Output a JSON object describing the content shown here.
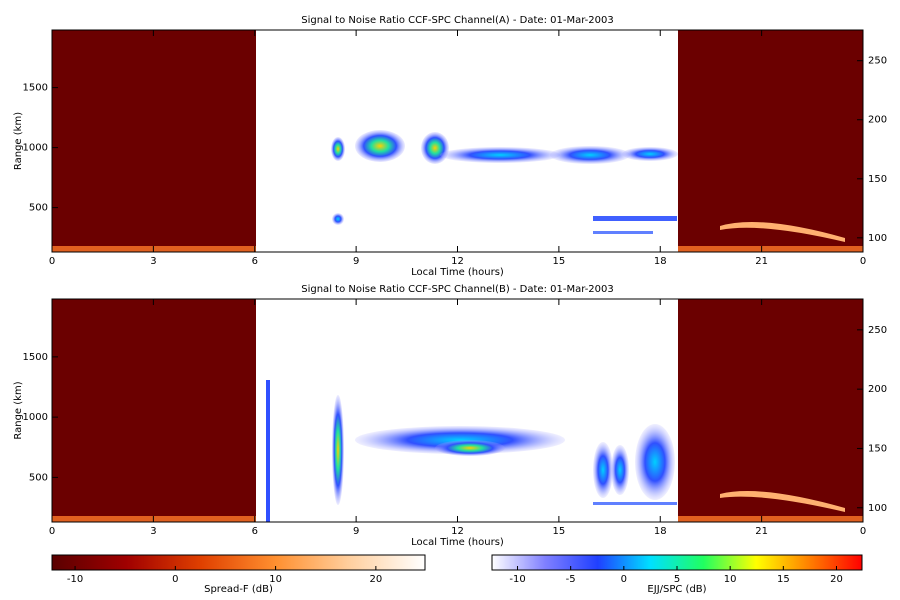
{
  "chart_data": [
    {
      "type": "heatmap",
      "title": "Signal to Noise Ratio CCF-SPC Channel(A) - Date: 01-Mar-2003",
      "xlabel": "Local Time (hours)",
      "ylabel": "Range (km)",
      "xlim": [
        0,
        24
      ],
      "xticks": [
        0,
        3,
        6,
        9,
        12,
        15,
        18,
        21,
        {
          "value": 24,
          "label": "0"
        }
      ],
      "ylim": [
        130,
        1980
      ],
      "yticks": [
        500,
        1000,
        1500
      ],
      "y2lim": [
        88,
        276
      ],
      "y2ticks": [
        100,
        150,
        200,
        250
      ]
    },
    {
      "type": "heatmap",
      "title": "Signal to Noise Ratio CCF-SPC Channel(B) - Date: 01-Mar-2003",
      "xlabel": "Local Time (hours)",
      "ylabel": "Range (km)",
      "xlim": [
        0,
        24
      ],
      "xticks": [
        0,
        3,
        6,
        9,
        12,
        15,
        18,
        21,
        {
          "value": 24,
          "label": "0"
        }
      ],
      "ylim": [
        130,
        1980
      ],
      "yticks": [
        500,
        1000,
        1500
      ],
      "y2lim": [
        88,
        276
      ],
      "y2ticks": [
        100,
        150,
        200,
        250
      ]
    }
  ],
  "colorbars": [
    {
      "label": "Spread-F (dB)",
      "lim": [
        -12.3,
        24.9
      ],
      "ticks": [
        -10,
        0,
        10,
        20
      ],
      "colors": [
        "#5a0000",
        "#a00000",
        "#e04000",
        "#ff9030",
        "#ffd0a0",
        "#ffffff"
      ]
    },
    {
      "label": "EJJ/SPC (dB)",
      "lim": [
        -12.4,
        22.4
      ],
      "ticks": [
        -10,
        -5,
        0,
        5,
        10,
        15,
        20
      ],
      "colors": [
        "#ffffff",
        "#8080ff",
        "#2040ff",
        "#00e0ff",
        "#20ff60",
        "#ffff00",
        "#ff8000",
        "#ff0000"
      ]
    }
  ]
}
